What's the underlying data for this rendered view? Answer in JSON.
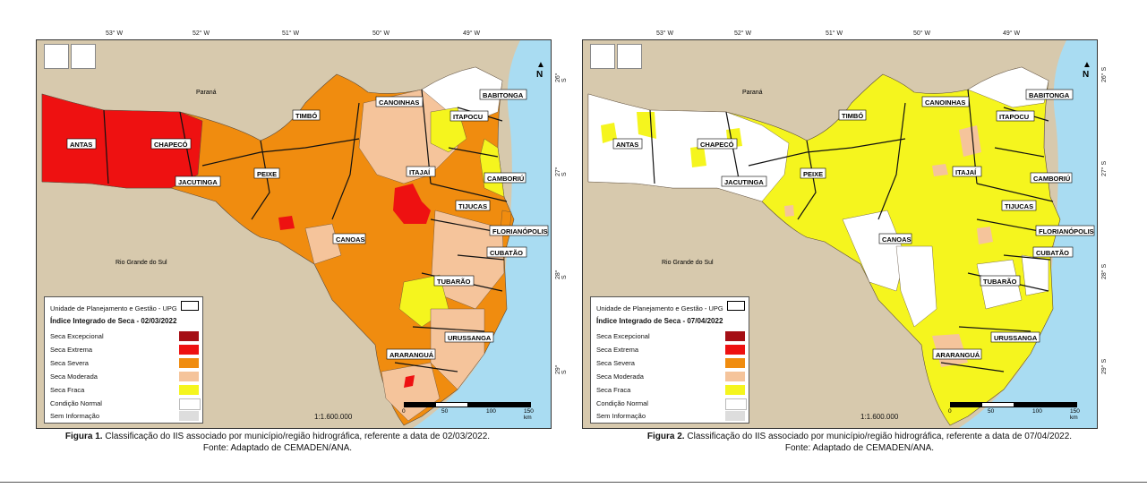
{
  "colors": {
    "seca_excepcional": "#a50f15",
    "seca_extrema": "#ee1111",
    "seca_severa": "#f08c0f",
    "seca_moderada": "#f5c49b",
    "seca_fraca": "#f5f51e",
    "condicao_normal": "#ffffff",
    "sem_informacao": "#dddddd",
    "ocean": "#a9dcf2",
    "land_outside": "#d7c9ad"
  },
  "lon_ticks": [
    "53° W",
    "52° W",
    "51° W",
    "50° W",
    "49° W"
  ],
  "lat_ticks": [
    "26° S",
    "27° S",
    "28° S",
    "29° S"
  ],
  "places": {
    "parana": "Paraná",
    "rgs": "Rio Grande do Sul"
  },
  "upg_labels": {
    "antas": "ANTAS",
    "chapeco": "CHAPECÓ",
    "jacutinga": "JACUTINGA",
    "peixe": "PEIXE",
    "timbo": "TIMBÓ",
    "canoinhas": "CANOINHAS",
    "babitonga": "BABITONGA",
    "itapocu": "ITAPOCU",
    "itajai": "ITAJAÍ",
    "camboriu": "CAMBORIÚ",
    "tijucas": "TIJUCAS",
    "florianopolis": "FLORIANÓPOLIS",
    "cubatao": "CUBATÃO",
    "canoas": "CANOAS",
    "tubarao": "TUBARÃO",
    "urussanga": "URUSSANGA",
    "ararangua": "ARARANGUÁ"
  },
  "legend": {
    "upg": "Unidade de Planejamento e Gestão - UPG",
    "classes": [
      "Seca Excepcional",
      "Seca Extrema",
      "Seca Severa",
      "Seca Moderada",
      "Seca Fraca",
      "Condição Normal",
      "Sem Informação"
    ]
  },
  "scale": {
    "ratio": "1:1.600.000",
    "ticks": [
      "0",
      "50",
      "100",
      "150 km"
    ]
  },
  "north": "N",
  "maps": [
    {
      "legend_title": "Índice Integrado de Seca - 02/03/2022",
      "caption_label": "Figura 1.",
      "caption_text": " Classificação do IIS associado por município/região hidrográfica, referente a data de 02/03/2022.",
      "caption_source": "Fonte: Adaptado de CEMADEN/ANA."
    },
    {
      "legend_title": "Índice Integrado de Seca - 07/04/2022",
      "caption_label": "Figura 2.",
      "caption_text": " Classificação do IIS associado por município/região hidrográfica, referente a data de 07/04/2022.",
      "caption_source": "Fonte: Adaptado de CEMADEN/ANA."
    }
  ]
}
